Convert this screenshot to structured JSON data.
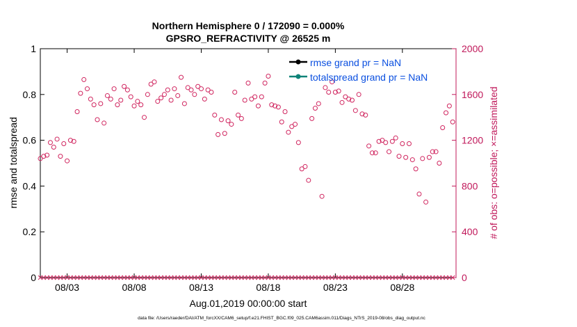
{
  "colors": {
    "left_axis": "#000000",
    "right_axis": "#C0185A",
    "legend_text": "#0A4FE0",
    "rmse_line": "#000000",
    "spread_line": "#0E8378",
    "obs_marker": "#D0245E"
  },
  "chart_data": {
    "type": "scatter",
    "title_line1": "Northern Hemisphere 0 / 172090 = 0.000%",
    "title_line2": "GPSRO_REFRACTIVITY @ 26525 m",
    "ylabel_left": "rmse and totalspread",
    "ylabel_right": "# of obs: o=possible; ×=assimilated",
    "xlabel": "Aug.01,2019 00:00:00 start",
    "footnote": "data file: /Users/raeder/DAI/ATM_forcXX/CAM6_setup/f.e21.FHIST_BGC.f09_025.CAM6assim.011/Diags_NTrS_2019-08/obs_diag_output.nc",
    "xlim": [
      1.0,
      32.0
    ],
    "xticks": [
      3,
      8,
      13,
      18,
      23,
      28
    ],
    "xtick_labels": [
      "08/03",
      "08/08",
      "08/13",
      "08/18",
      "08/23",
      "08/28"
    ],
    "ylim_left": [
      0,
      1
    ],
    "yticks_left": [
      "0",
      "0.2",
      "0.4",
      "0.6",
      "0.8",
      "1"
    ],
    "ylim_right": [
      0,
      2000
    ],
    "yticks_right": [
      "0",
      "400",
      "800",
      "1200",
      "1600",
      "2000"
    ],
    "legend": [
      {
        "name": "rmse grand pr = NaN"
      },
      {
        "name": "totalspread grand pr = NaN"
      }
    ],
    "grid": false,
    "legend_position": "top-right",
    "series": [
      {
        "name": "obs possible",
        "marker": "circle",
        "axis": "right",
        "x": [
          1.0,
          1.25,
          1.5,
          1.75,
          2.0,
          2.25,
          2.5,
          2.75,
          3.0,
          3.25,
          3.5,
          3.75,
          4.0,
          4.25,
          4.5,
          4.75,
          5.0,
          5.25,
          5.5,
          5.75,
          6.0,
          6.25,
          6.5,
          6.75,
          7.0,
          7.25,
          7.5,
          7.75,
          8.0,
          8.25,
          8.5,
          8.75,
          9.0,
          9.25,
          9.5,
          9.75,
          10.0,
          10.25,
          10.5,
          10.75,
          11.0,
          11.25,
          11.5,
          11.75,
          12.0,
          12.25,
          12.5,
          12.75,
          13.0,
          13.25,
          13.5,
          13.75,
          14.0,
          14.25,
          14.5,
          14.75,
          15.0,
          15.25,
          15.5,
          15.75,
          16.0,
          16.25,
          16.5,
          16.75,
          17.0,
          17.25,
          17.5,
          17.75,
          18.0,
          18.25,
          18.5,
          18.75,
          19.0,
          19.25,
          19.5,
          19.75,
          20.0,
          20.25,
          20.5,
          20.75,
          21.0,
          21.25,
          21.5,
          21.75,
          22.0,
          22.25,
          22.5,
          22.75,
          23.0,
          23.25,
          23.5,
          23.75,
          24.0,
          24.25,
          24.5,
          24.75,
          25.0,
          25.25,
          25.5,
          25.75,
          26.0,
          26.25,
          26.5,
          26.75,
          27.0,
          27.25,
          27.5,
          27.75,
          28.0,
          28.25,
          28.5,
          28.75,
          29.0,
          29.25,
          29.5,
          29.75,
          30.0,
          30.25,
          30.5,
          30.75,
          31.0,
          31.25,
          31.5,
          31.75
        ],
        "y": [
          1040,
          1060,
          1070,
          1180,
          1140,
          1210,
          1060,
          1170,
          1020,
          1200,
          1190,
          1450,
          1610,
          1730,
          1650,
          1560,
          1510,
          1380,
          1520,
          1350,
          1590,
          1560,
          1650,
          1510,
          1550,
          1670,
          1640,
          1580,
          1500,
          1540,
          1510,
          1400,
          1600,
          1690,
          1710,
          1540,
          1570,
          1600,
          1640,
          1550,
          1650,
          1590,
          1750,
          1520,
          1660,
          1640,
          1600,
          1670,
          1650,
          1560,
          1640,
          1620,
          1420,
          1250,
          1380,
          1260,
          1370,
          1340,
          1620,
          1420,
          1390,
          1550,
          1700,
          1560,
          1580,
          1500,
          1580,
          1700,
          1760,
          1510,
          1500,
          1490,
          1360,
          1450,
          1270,
          1320,
          1340,
          1180,
          950,
          970,
          850,
          1390,
          1480,
          1520,
          710,
          1660,
          1620,
          1710,
          1620,
          1630,
          1530,
          1580,
          1560,
          1550,
          1460,
          1600,
          1430,
          1420,
          1150,
          1090,
          1090,
          1190,
          1200,
          1180,
          1100,
          1190,
          1220,
          1060,
          1170,
          1050,
          1170,
          1030,
          950,
          730,
          1040,
          660,
          1050,
          1100,
          1100,
          1000,
          1310,
          1440,
          1500,
          1360
        ]
      },
      {
        "name": "obs assimilated",
        "marker": "cross",
        "axis": "right",
        "x": [
          1.0,
          1.25,
          1.5,
          1.75,
          2.0,
          2.25,
          2.5,
          2.75,
          3.0,
          3.25,
          3.5,
          3.75,
          4.0,
          4.25,
          4.5,
          4.75,
          5.0,
          5.25,
          5.5,
          5.75,
          6.0,
          6.25,
          6.5,
          6.75,
          7.0,
          7.25,
          7.5,
          7.75,
          8.0,
          8.25,
          8.5,
          8.75,
          9.0,
          9.25,
          9.5,
          9.75,
          10.0,
          10.25,
          10.5,
          10.75,
          11.0,
          11.25,
          11.5,
          11.75,
          12.0,
          12.25,
          12.5,
          12.75,
          13.0,
          13.25,
          13.5,
          13.75,
          14.0,
          14.25,
          14.5,
          14.75,
          15.0,
          15.25,
          15.5,
          15.75,
          16.0,
          16.25,
          16.5,
          16.75,
          17.0,
          17.25,
          17.5,
          17.75,
          18.0,
          18.25,
          18.5,
          18.75,
          19.0,
          19.25,
          19.5,
          19.75,
          20.0,
          20.25,
          20.5,
          20.75,
          21.0,
          21.25,
          21.5,
          21.75,
          22.0,
          22.25,
          22.5,
          22.75,
          23.0,
          23.25,
          23.5,
          23.75,
          24.0,
          24.25,
          24.5,
          24.75,
          25.0,
          25.25,
          25.5,
          25.75,
          26.0,
          26.25,
          26.5,
          26.75,
          27.0,
          27.25,
          27.5,
          27.75,
          28.0,
          28.25,
          28.5,
          28.75,
          29.0,
          29.25,
          29.5,
          29.75,
          30.0,
          30.25,
          30.5,
          30.75,
          31.0,
          31.25,
          31.5,
          31.75
        ],
        "y": [
          0,
          0,
          0,
          0,
          0,
          0,
          0,
          0,
          0,
          0,
          0,
          0,
          0,
          0,
          0,
          0,
          0,
          0,
          0,
          0,
          0,
          0,
          0,
          0,
          0,
          0,
          0,
          0,
          0,
          0,
          0,
          0,
          0,
          0,
          0,
          0,
          0,
          0,
          0,
          0,
          0,
          0,
          0,
          0,
          0,
          0,
          0,
          0,
          0,
          0,
          0,
          0,
          0,
          0,
          0,
          0,
          0,
          0,
          0,
          0,
          0,
          0,
          0,
          0,
          0,
          0,
          0,
          0,
          0,
          0,
          0,
          0,
          0,
          0,
          0,
          0,
          0,
          0,
          0,
          0,
          0,
          0,
          0,
          0,
          0,
          0,
          0,
          0,
          0,
          0,
          0,
          0,
          0,
          0,
          0,
          0,
          0,
          0,
          0,
          0,
          0,
          0,
          0,
          0,
          0,
          0,
          0,
          0,
          0,
          0,
          0,
          0,
          0,
          0,
          0,
          0,
          0,
          0,
          0,
          0,
          0,
          0,
          0,
          0
        ]
      }
    ]
  }
}
